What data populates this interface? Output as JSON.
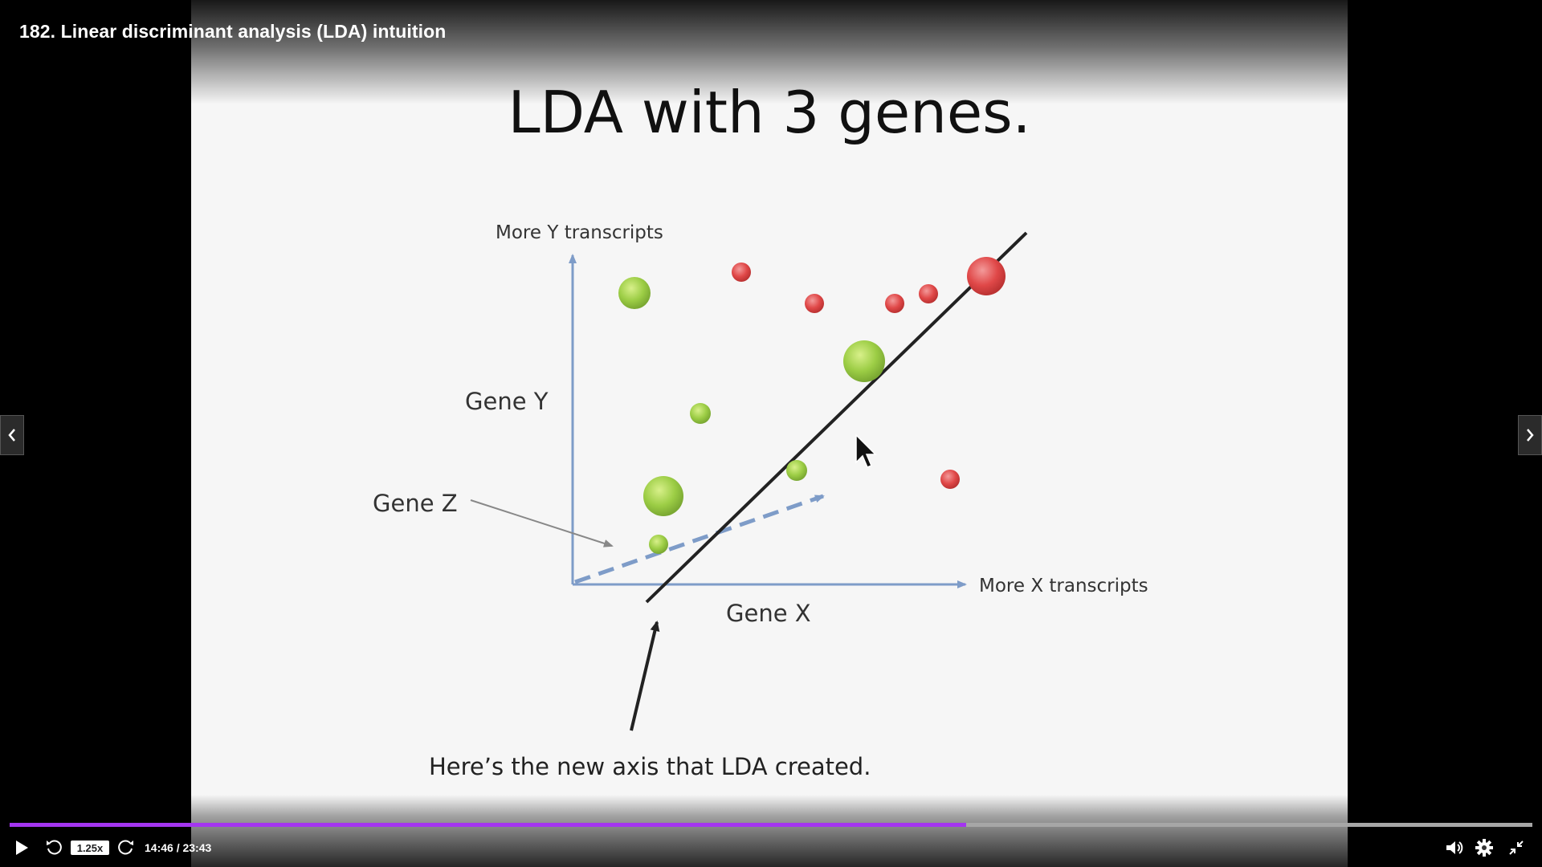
{
  "video": {
    "title": "182. Linear discriminant analysis (LDA) intuition"
  },
  "slide": {
    "heading": "LDA with 3 genes.",
    "y_axis_top_label": "More Y transcripts",
    "x_axis_right_label": "More X transcripts",
    "gene_y_label": "Gene Y",
    "gene_z_label": "Gene Z",
    "gene_x_label": "Gene X",
    "caption": "Here’s the new axis that LDA created.",
    "colors": {
      "green_group": "#99cc44",
      "red_group": "#e04848",
      "axis": "#7e9cc8",
      "lda_axis": "#222222"
    }
  },
  "controls": {
    "speed_label": "1.25x",
    "time_label": "14:46 / 23:43",
    "progress_fraction": 0.628,
    "accent_color": "#a435f0",
    "icons": {
      "play": "play-icon",
      "rewind": "rewind-5s-icon",
      "forward": "forward-5s-icon",
      "volume": "volume-icon",
      "settings": "gear-icon",
      "fullscreen": "exit-fullscreen-icon",
      "prev": "chevron-left-icon",
      "next": "chevron-right-icon"
    }
  }
}
